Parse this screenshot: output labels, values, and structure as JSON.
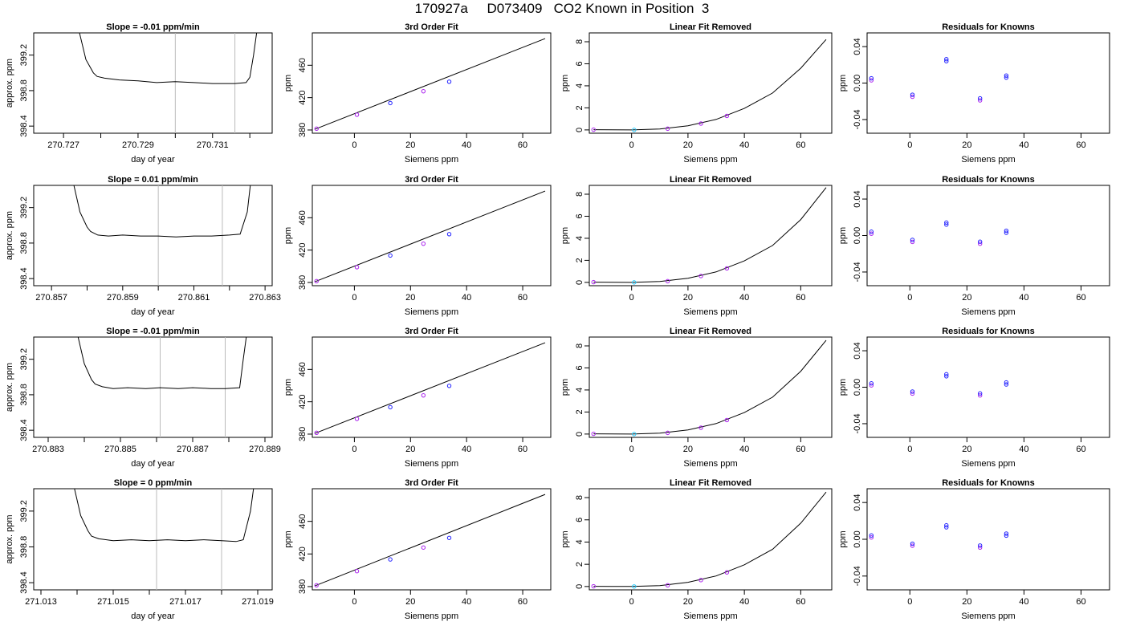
{
  "figure": {
    "title": "170927a     D073409   CO2 Known in Position  3"
  },
  "colors": {
    "axis": "#000000",
    "trace": "#000000",
    "marker_blue": "#2222ff",
    "marker_violet": "#aa22ee",
    "marker_cyan": "#22ccff",
    "vline": "#bbbbbb"
  },
  "chart_data": [
    {
      "type": "line",
      "title": "Slope =  -0.01  ppm/min",
      "xlabel": "day of year",
      "ylabel": "approx. ppm",
      "xlim": [
        270.7262,
        270.7326
      ],
      "ylim": [
        398.32,
        399.45
      ],
      "xticks": [
        270.727,
        270.728,
        270.729,
        270.73,
        270.731,
        270.732
      ],
      "xtick_labels": [
        "270.727",
        "",
        "270.729",
        "",
        "270.731",
        ""
      ],
      "yticks": [
        398.4,
        398.8,
        399.2
      ],
      "ytick_labels": [
        "398.4",
        "398.8",
        "399.2"
      ],
      "vlines": [
        270.73,
        270.7316
      ],
      "series": [
        {
          "x": [
            270.7274,
            270.7276,
            270.7278,
            270.7279,
            270.7281,
            270.7285,
            270.729,
            270.7295,
            270.73,
            270.7305,
            270.731,
            270.7313,
            270.7316,
            270.7319,
            270.732,
            270.7321,
            270.7322
          ],
          "y": [
            399.5,
            399.15,
            399.0,
            398.96,
            398.94,
            398.92,
            398.91,
            398.89,
            398.9,
            398.89,
            398.88,
            398.88,
            398.88,
            398.89,
            398.95,
            399.2,
            399.5
          ]
        }
      ]
    },
    {
      "type": "scatter",
      "title": "3rd Order Fit",
      "xlabel": "Siemens ppm",
      "ylabel": "ppm",
      "xlim": [
        -15,
        70
      ],
      "ylim": [
        376,
        500
      ],
      "xticks": [
        0,
        20,
        40,
        60
      ],
      "xtick_labels": [
        "0",
        "20",
        "40",
        "60"
      ],
      "yticks": [
        380,
        420,
        460
      ],
      "ytick_labels": [
        "380",
        "420",
        "460"
      ],
      "fit_line": {
        "x": [
          -14,
          68
        ],
        "y": [
          381,
          493
        ]
      },
      "points": {
        "x": [
          -13.5,
          0.9,
          12.8,
          24.6,
          33.8
        ],
        "y": [
          381.6,
          398.9,
          413.3,
          427.9,
          439.7
        ]
      }
    },
    {
      "type": "scatter",
      "title": "Linear Fit Removed",
      "xlabel": "Siemens ppm",
      "ylabel": "ppm",
      "xlim": [
        -15,
        71
      ],
      "ylim": [
        -0.3,
        8.8
      ],
      "xticks": [
        0,
        20,
        40,
        60
      ],
      "xtick_labels": [
        "0",
        "20",
        "40",
        "60"
      ],
      "yticks": [
        0,
        2,
        4,
        6,
        8
      ],
      "ytick_labels": [
        "0",
        "2",
        "4",
        "6",
        "8"
      ],
      "fit_curve": {
        "x": [
          -13.5,
          0,
          10,
          20,
          30,
          40,
          50,
          60,
          69
        ],
        "y": [
          0.02,
          0.0,
          0.08,
          0.38,
          0.95,
          1.95,
          3.35,
          5.6,
          8.2
        ]
      },
      "points": {
        "x": [
          -13.5,
          0.9,
          12.8,
          24.6,
          33.8
        ],
        "y": [
          0.02,
          0.0,
          0.11,
          0.58,
          1.27
        ]
      }
    },
    {
      "type": "scatter",
      "title": "Residuals for Knowns",
      "xlabel": "Siemens ppm",
      "ylabel": "ppm",
      "xlim": [
        -15,
        70
      ],
      "ylim": [
        -0.055,
        0.055
      ],
      "xticks": [
        0,
        20,
        40,
        60
      ],
      "xtick_labels": [
        "0",
        "20",
        "40",
        "60"
      ],
      "yticks": [
        -0.04,
        0.0,
        0.04
      ],
      "ytick_labels": [
        "-0.04",
        "0.00",
        "0.04"
      ],
      "points": {
        "x": [
          -13.5,
          0.9,
          12.8,
          24.6,
          33.8
        ],
        "y": [
          0.003,
          -0.015,
          0.024,
          -0.019,
          0.006
        ]
      }
    },
    {
      "type": "line",
      "title": "Slope =  0.01  ppm/min",
      "xlabel": "day of year",
      "ylabel": "approx. ppm",
      "xlim": [
        270.8565,
        270.8632
      ],
      "ylim": [
        398.32,
        399.45
      ],
      "xticks": [
        270.857,
        270.858,
        270.859,
        270.86,
        270.861,
        270.862,
        270.863
      ],
      "xtick_labels": [
        "270.857",
        "",
        "270.859",
        "",
        "270.861",
        "",
        "270.863"
      ],
      "yticks": [
        398.4,
        398.8,
        399.2
      ],
      "ytick_labels": [
        "398.4",
        "398.8",
        "399.2"
      ],
      "vlines": [
        270.86,
        270.8618
      ],
      "series": [
        {
          "x": [
            270.8576,
            270.8578,
            270.858,
            270.8581,
            270.8583,
            270.8586,
            270.859,
            270.8595,
            270.86,
            270.8605,
            270.861,
            270.8615,
            270.862,
            270.8623,
            270.8625,
            270.8626
          ],
          "y": [
            399.5,
            399.15,
            398.98,
            398.93,
            398.89,
            398.88,
            398.89,
            398.88,
            398.88,
            398.87,
            398.88,
            398.88,
            398.89,
            398.9,
            399.15,
            399.5
          ]
        }
      ]
    },
    {
      "type": "scatter",
      "title": "3rd Order Fit",
      "xlabel": "Siemens ppm",
      "ylabel": "ppm",
      "xlim": [
        -15,
        70
      ],
      "ylim": [
        376,
        500
      ],
      "xticks": [
        0,
        20,
        40,
        60
      ],
      "xtick_labels": [
        "0",
        "20",
        "40",
        "60"
      ],
      "yticks": [
        380,
        420,
        460
      ],
      "ytick_labels": [
        "380",
        "420",
        "460"
      ],
      "fit_line": {
        "x": [
          -14,
          68
        ],
        "y": [
          381,
          493
        ]
      },
      "points": {
        "x": [
          -13.5,
          0.9,
          12.8,
          24.6,
          33.8
        ],
        "y": [
          381.6,
          398.9,
          413.3,
          427.9,
          439.7
        ]
      }
    },
    {
      "type": "scatter",
      "title": "Linear Fit Removed",
      "xlabel": "Siemens ppm",
      "ylabel": "ppm",
      "xlim": [
        -15,
        71
      ],
      "ylim": [
        -0.3,
        8.8
      ],
      "xticks": [
        0,
        20,
        40,
        60
      ],
      "xtick_labels": [
        "0",
        "20",
        "40",
        "60"
      ],
      "yticks": [
        0,
        2,
        4,
        6,
        8
      ],
      "ytick_labels": [
        "0",
        "2",
        "4",
        "6",
        "8"
      ],
      "fit_curve": {
        "x": [
          -13.5,
          0,
          10,
          20,
          30,
          40,
          50,
          60,
          69
        ],
        "y": [
          0.02,
          0.0,
          0.08,
          0.38,
          0.95,
          1.95,
          3.35,
          5.7,
          8.6
        ]
      },
      "points": {
        "x": [
          -13.5,
          0.9,
          12.8,
          24.6,
          33.8
        ],
        "y": [
          0.02,
          0.0,
          0.11,
          0.58,
          1.27
        ]
      }
    },
    {
      "type": "scatter",
      "title": "Residuals for Knowns",
      "xlabel": "Siemens ppm",
      "ylabel": "ppm",
      "xlim": [
        -15,
        70
      ],
      "ylim": [
        -0.055,
        0.055
      ],
      "xticks": [
        0,
        20,
        40,
        60
      ],
      "xtick_labels": [
        "0",
        "20",
        "40",
        "60"
      ],
      "yticks": [
        -0.04,
        0.0,
        0.04
      ],
      "ytick_labels": [
        "-0.04",
        "0.00",
        "0.04"
      ],
      "points": {
        "x": [
          -13.5,
          0.9,
          12.8,
          24.6,
          33.8
        ],
        "y": [
          0.002,
          -0.007,
          0.012,
          -0.009,
          0.003
        ]
      }
    },
    {
      "type": "line",
      "title": "Slope =  -0.01  ppm/min",
      "xlabel": "day of year",
      "ylabel": "approx. ppm",
      "xlim": [
        270.8826,
        270.8892
      ],
      "ylim": [
        398.32,
        399.45
      ],
      "xticks": [
        270.883,
        270.884,
        270.885,
        270.886,
        270.887,
        270.888,
        270.889
      ],
      "xtick_labels": [
        "270.883",
        "",
        "270.885",
        "",
        "270.887",
        "",
        "270.889"
      ],
      "yticks": [
        398.4,
        398.8,
        399.2
      ],
      "ytick_labels": [
        "398.4",
        "398.8",
        "399.2"
      ],
      "vlines": [
        270.8861,
        270.8879
      ],
      "series": [
        {
          "x": [
            270.8838,
            270.884,
            270.8842,
            270.8843,
            270.8845,
            270.8848,
            270.8852,
            270.8857,
            270.8861,
            270.8866,
            270.887,
            270.8875,
            270.8879,
            270.8883,
            270.8884,
            270.8885
          ],
          "y": [
            399.5,
            399.15,
            398.97,
            398.92,
            398.89,
            398.87,
            398.88,
            398.87,
            398.88,
            398.87,
            398.88,
            398.87,
            398.87,
            398.88,
            399.2,
            399.5
          ]
        }
      ]
    },
    {
      "type": "scatter",
      "title": "3rd Order Fit",
      "xlabel": "Siemens ppm",
      "ylabel": "ppm",
      "xlim": [
        -15,
        70
      ],
      "ylim": [
        376,
        500
      ],
      "xticks": [
        0,
        20,
        40,
        60
      ],
      "xtick_labels": [
        "0",
        "20",
        "40",
        "60"
      ],
      "yticks": [
        380,
        420,
        460
      ],
      "ytick_labels": [
        "380",
        "420",
        "460"
      ],
      "fit_line": {
        "x": [
          -14,
          68
        ],
        "y": [
          381,
          493
        ]
      },
      "points": {
        "x": [
          -13.5,
          0.9,
          12.8,
          24.6,
          33.8
        ],
        "y": [
          381.6,
          398.9,
          413.3,
          427.9,
          439.7
        ]
      }
    },
    {
      "type": "scatter",
      "title": "Linear Fit Removed",
      "xlabel": "Siemens ppm",
      "ylabel": "ppm",
      "xlim": [
        -15,
        71
      ],
      "ylim": [
        -0.3,
        8.8
      ],
      "xticks": [
        0,
        20,
        40,
        60
      ],
      "xtick_labels": [
        "0",
        "20",
        "40",
        "60"
      ],
      "yticks": [
        0,
        2,
        4,
        6,
        8
      ],
      "ytick_labels": [
        "0",
        "2",
        "4",
        "6",
        "8"
      ],
      "fit_curve": {
        "x": [
          -13.5,
          0,
          10,
          20,
          30,
          40,
          50,
          60,
          69
        ],
        "y": [
          0.02,
          0.0,
          0.08,
          0.38,
          0.95,
          1.95,
          3.35,
          5.7,
          8.5
        ]
      },
      "points": {
        "x": [
          -13.5,
          0.9,
          12.8,
          24.6,
          33.8
        ],
        "y": [
          0.02,
          0.0,
          0.11,
          0.58,
          1.27
        ]
      }
    },
    {
      "type": "scatter",
      "title": "Residuals for Knowns",
      "xlabel": "Siemens ppm",
      "ylabel": "ppm",
      "xlim": [
        -15,
        70
      ],
      "ylim": [
        -0.055,
        0.055
      ],
      "xticks": [
        0,
        20,
        40,
        60
      ],
      "xtick_labels": [
        "0",
        "20",
        "40",
        "60"
      ],
      "yticks": [
        -0.04,
        0.0,
        0.04
      ],
      "ytick_labels": [
        "-0.04",
        "0.00",
        "0.04"
      ],
      "points": {
        "x": [
          -13.5,
          0.9,
          12.8,
          24.6,
          33.8
        ],
        "y": [
          0.002,
          -0.007,
          0.012,
          -0.009,
          0.003
        ]
      }
    },
    {
      "type": "line",
      "title": "Slope =  0  ppm/min",
      "xlabel": "day of year",
      "ylabel": "approx. ppm",
      "xlim": [
        271.0128,
        271.0194
      ],
      "ylim": [
        398.32,
        399.45
      ],
      "xticks": [
        271.013,
        271.014,
        271.015,
        271.016,
        271.017,
        271.018,
        271.019
      ],
      "xtick_labels": [
        "271.013",
        "",
        "271.015",
        "",
        "271.017",
        "",
        "271.019"
      ],
      "yticks": [
        398.4,
        398.8,
        399.2
      ],
      "ytick_labels": [
        "398.4",
        "398.8",
        "399.2"
      ],
      "vlines": [
        271.0162,
        271.018
      ],
      "series": [
        {
          "x": [
            271.0139,
            271.0141,
            271.0143,
            271.0144,
            271.0146,
            271.015,
            271.0155,
            271.016,
            271.0165,
            271.017,
            271.0175,
            271.018,
            271.0184,
            271.0186,
            271.0188,
            271.0189
          ],
          "y": [
            399.5,
            399.15,
            398.98,
            398.92,
            398.89,
            398.87,
            398.88,
            398.87,
            398.88,
            398.87,
            398.88,
            398.87,
            398.86,
            398.88,
            399.2,
            399.5
          ]
        }
      ]
    },
    {
      "type": "scatter",
      "title": "3rd Order Fit",
      "xlabel": "Siemens ppm",
      "ylabel": "ppm",
      "xlim": [
        -15,
        70
      ],
      "ylim": [
        376,
        500
      ],
      "xticks": [
        0,
        20,
        40,
        60
      ],
      "xtick_labels": [
        "0",
        "20",
        "40",
        "60"
      ],
      "yticks": [
        380,
        420,
        460
      ],
      "ytick_labels": [
        "380",
        "420",
        "460"
      ],
      "fit_line": {
        "x": [
          -14,
          68
        ],
        "y": [
          381,
          493
        ]
      },
      "points": {
        "x": [
          -13.5,
          0.9,
          12.8,
          24.6,
          33.8
        ],
        "y": [
          381.6,
          398.9,
          413.3,
          427.9,
          439.7
        ]
      }
    },
    {
      "type": "scatter",
      "title": "Linear Fit Removed",
      "xlabel": "Siemens ppm",
      "ylabel": "ppm",
      "xlim": [
        -15,
        71
      ],
      "ylim": [
        -0.3,
        8.8
      ],
      "xticks": [
        0,
        20,
        40,
        60
      ],
      "xtick_labels": [
        "0",
        "20",
        "40",
        "60"
      ],
      "yticks": [
        0,
        2,
        4,
        6,
        8
      ],
      "ytick_labels": [
        "0",
        "2",
        "4",
        "6",
        "8"
      ],
      "fit_curve": {
        "x": [
          -13.5,
          0,
          10,
          20,
          30,
          40,
          50,
          60,
          69
        ],
        "y": [
          0.02,
          0.0,
          0.08,
          0.38,
          0.95,
          1.95,
          3.35,
          5.7,
          8.5
        ]
      },
      "points": {
        "x": [
          -13.5,
          0.9,
          12.8,
          24.6,
          33.8
        ],
        "y": [
          0.02,
          0.0,
          0.11,
          0.58,
          1.27
        ]
      }
    },
    {
      "type": "scatter",
      "title": "Residuals for Knowns",
      "xlabel": "Siemens ppm",
      "ylabel": "ppm",
      "xlim": [
        -15,
        70
      ],
      "ylim": [
        -0.055,
        0.055
      ],
      "xticks": [
        0,
        20,
        40,
        60
      ],
      "xtick_labels": [
        "0",
        "20",
        "40",
        "60"
      ],
      "yticks": [
        -0.04,
        0.0,
        0.04
      ],
      "ytick_labels": [
        "-0.04",
        "0.00",
        "0.04"
      ],
      "points": {
        "x": [
          -13.5,
          0.9,
          12.8,
          24.6,
          33.8
        ],
        "y": [
          0.002,
          -0.007,
          0.013,
          -0.009,
          0.004
        ]
      }
    }
  ]
}
